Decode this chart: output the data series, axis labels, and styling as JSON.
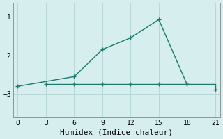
{
  "xlabel": "Humidex (Indice chaleur)",
  "background_color": "#d6eeee",
  "line_color": "#1a7a6e",
  "grid_color": "#b8d8d8",
  "xlim": [
    -0.5,
    21.5
  ],
  "ylim": [
    -3.6,
    -0.65
  ],
  "yticks": [
    -3,
    -2,
    -1
  ],
  "xticks": [
    0,
    3,
    6,
    9,
    12,
    15,
    18,
    21
  ],
  "line1_x": [
    0,
    6,
    9,
    12,
    15,
    18
  ],
  "line1_y": [
    -2.8,
    -2.55,
    -1.85,
    -1.55,
    -1.08,
    -2.75
  ],
  "line2_x": [
    3,
    6,
    9,
    12,
    15,
    18,
    21
  ],
  "line2_y": [
    -2.75,
    -2.75,
    -2.75,
    -2.75,
    -2.75,
    -2.75,
    -2.88
  ],
  "marker_size": 3.5,
  "line_width": 1.0,
  "tick_fontsize": 7,
  "xlabel_fontsize": 8
}
